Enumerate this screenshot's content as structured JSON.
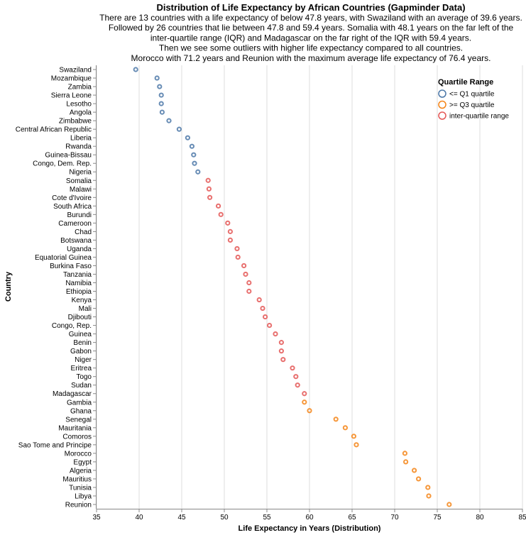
{
  "chart_data": {
    "type": "scatter",
    "title": "Distribution of Life Expectancy by African Countries (Gapminder Data)",
    "subtitle": [
      "There are 13 countries with a life expectancy of below 47.8 years, with Swaziland with an average of 39.6 years.",
      "Followed by 26 countries that lie between 47.8 and 59.4 years. Somalia with 48.1 years on the far left of the",
      "inter-quartile range (IQR) and Madagascar on the far right of the IQR with 59.4 years.",
      "Then we see some outliers with higher life expectancy compared to all countries.",
      "Morocco with 71.2 years and Reunion with the maximum average life expectancy of 76.4 years."
    ],
    "xlabel": "Life Expectancy in Years (Distribution)",
    "ylabel": "Country",
    "xlim": [
      35,
      85
    ],
    "xticks": [
      35,
      40,
      45,
      50,
      55,
      60,
      65,
      70,
      75,
      80,
      85
    ],
    "grid": true,
    "legend": {
      "title": "Quartile Range",
      "placement": "top-right",
      "entries": [
        {
          "label": "<= Q1 quartile",
          "color": "#4c78a8"
        },
        {
          "label": ">= Q3 quartile",
          "color": "#f58518"
        },
        {
          "label": "inter-quartile range",
          "color": "#e45756"
        }
      ]
    },
    "points": [
      {
        "country": "Swaziland",
        "value": 39.6,
        "group": 0
      },
      {
        "country": "Mozambique",
        "value": 42.1,
        "group": 0
      },
      {
        "country": "Zambia",
        "value": 42.4,
        "group": 0
      },
      {
        "country": "Sierra Leone",
        "value": 42.6,
        "group": 0
      },
      {
        "country": "Lesotho",
        "value": 42.6,
        "group": 0
      },
      {
        "country": "Angola",
        "value": 42.7,
        "group": 0
      },
      {
        "country": "Zimbabwe",
        "value": 43.5,
        "group": 0
      },
      {
        "country": "Central African Republic",
        "value": 44.7,
        "group": 0
      },
      {
        "country": "Liberia",
        "value": 45.7,
        "group": 0
      },
      {
        "country": "Rwanda",
        "value": 46.2,
        "group": 0
      },
      {
        "country": "Guinea-Bissau",
        "value": 46.4,
        "group": 0
      },
      {
        "country": "Congo, Dem. Rep.",
        "value": 46.5,
        "group": 0
      },
      {
        "country": "Nigeria",
        "value": 46.9,
        "group": 0
      },
      {
        "country": "Somalia",
        "value": 48.1,
        "group": 2
      },
      {
        "country": "Malawi",
        "value": 48.2,
        "group": 2
      },
      {
        "country": "Cote d'Ivoire",
        "value": 48.3,
        "group": 2
      },
      {
        "country": "South Africa",
        "value": 49.3,
        "group": 2
      },
      {
        "country": "Burundi",
        "value": 49.6,
        "group": 2
      },
      {
        "country": "Cameroon",
        "value": 50.4,
        "group": 2
      },
      {
        "country": "Chad",
        "value": 50.7,
        "group": 2
      },
      {
        "country": "Botswana",
        "value": 50.7,
        "group": 2
      },
      {
        "country": "Uganda",
        "value": 51.5,
        "group": 2
      },
      {
        "country": "Equatorial Guinea",
        "value": 51.6,
        "group": 2
      },
      {
        "country": "Burkina Faso",
        "value": 52.3,
        "group": 2
      },
      {
        "country": "Tanzania",
        "value": 52.5,
        "group": 2
      },
      {
        "country": "Namibia",
        "value": 52.9,
        "group": 2
      },
      {
        "country": "Ethiopia",
        "value": 52.9,
        "group": 2
      },
      {
        "country": "Kenya",
        "value": 54.1,
        "group": 2
      },
      {
        "country": "Mali",
        "value": 54.5,
        "group": 2
      },
      {
        "country": "Djibouti",
        "value": 54.8,
        "group": 2
      },
      {
        "country": "Congo, Rep.",
        "value": 55.3,
        "group": 2
      },
      {
        "country": "Guinea",
        "value": 56.0,
        "group": 2
      },
      {
        "country": "Benin",
        "value": 56.7,
        "group": 2
      },
      {
        "country": "Gabon",
        "value": 56.7,
        "group": 2
      },
      {
        "country": "Niger",
        "value": 56.9,
        "group": 2
      },
      {
        "country": "Eritrea",
        "value": 58.0,
        "group": 2
      },
      {
        "country": "Togo",
        "value": 58.4,
        "group": 2
      },
      {
        "country": "Sudan",
        "value": 58.6,
        "group": 2
      },
      {
        "country": "Madagascar",
        "value": 59.4,
        "group": 2
      },
      {
        "country": "Gambia",
        "value": 59.4,
        "group": 1
      },
      {
        "country": "Ghana",
        "value": 60.0,
        "group": 1
      },
      {
        "country": "Senegal",
        "value": 63.1,
        "group": 1
      },
      {
        "country": "Mauritania",
        "value": 64.2,
        "group": 1
      },
      {
        "country": "Comoros",
        "value": 65.2,
        "group": 1
      },
      {
        "country": "Sao Tome and Principe",
        "value": 65.5,
        "group": 1
      },
      {
        "country": "Morocco",
        "value": 71.2,
        "group": 1
      },
      {
        "country": "Egypt",
        "value": 71.3,
        "group": 1
      },
      {
        "country": "Algeria",
        "value": 72.3,
        "group": 1
      },
      {
        "country": "Mauritius",
        "value": 72.8,
        "group": 1
      },
      {
        "country": "Tunisia",
        "value": 73.9,
        "group": 1
      },
      {
        "country": "Libya",
        "value": 74.0,
        "group": 1
      },
      {
        "country": "Reunion",
        "value": 76.4,
        "group": 1
      }
    ]
  }
}
